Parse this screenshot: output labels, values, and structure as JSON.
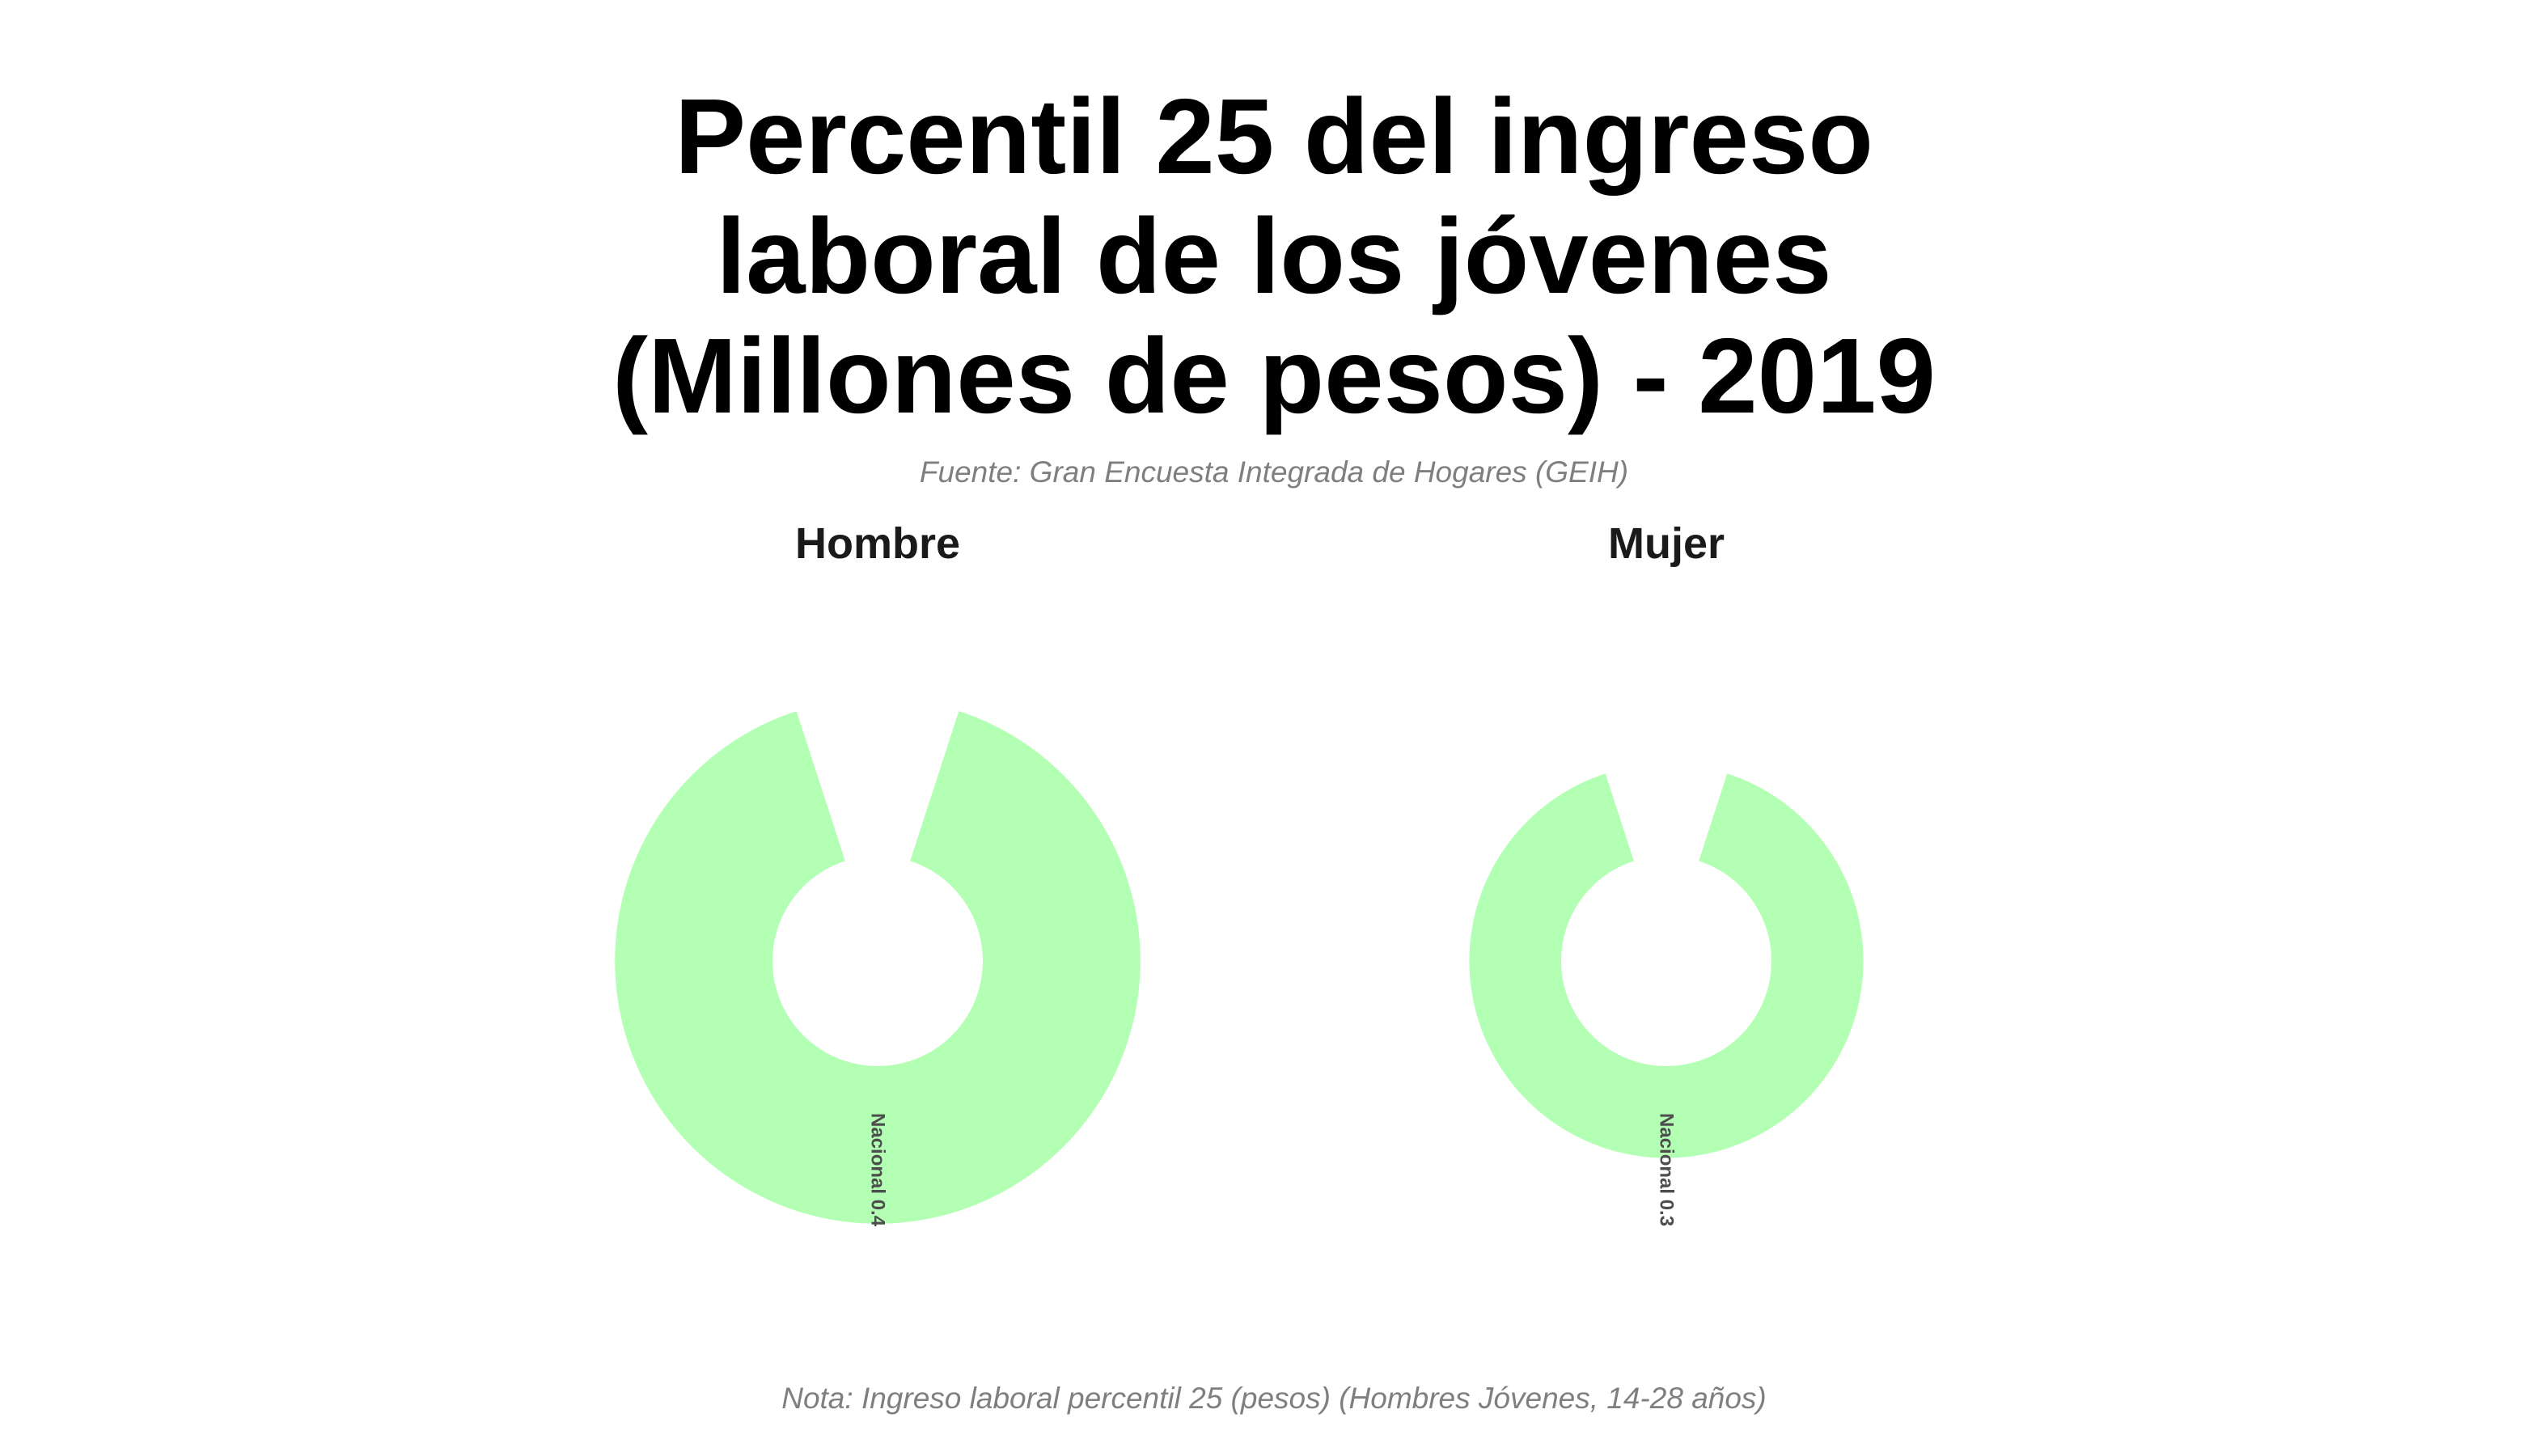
{
  "header": {
    "title_lines": [
      "Percentil 25 del ingreso",
      "laboral de los jóvenes",
      "(Millones de pesos) - 2019"
    ],
    "subtitle": "Fuente: Gran Encuesta Integrada de Hogares (GEIH)",
    "note": "Nota: Ingreso laboral percentil 25 (pesos) (Hombres Jóvenes, 14-28 años)"
  },
  "colors": {
    "slice_fill": "#b3ffb3",
    "title": "#000000",
    "caption": "#7f7f7f",
    "label": "#4d4d4d"
  },
  "chart_data": [
    {
      "type": "pie",
      "title": "Hombre",
      "variant": "donut",
      "series": [
        {
          "name": "Nacional",
          "value": 0.4,
          "label": "Nacional 0.4"
        }
      ]
    },
    {
      "type": "pie",
      "title": "Mujer",
      "variant": "donut",
      "series": [
        {
          "name": "Nacional",
          "value": 0.3,
          "label": "Nacional 0.3"
        }
      ]
    }
  ]
}
